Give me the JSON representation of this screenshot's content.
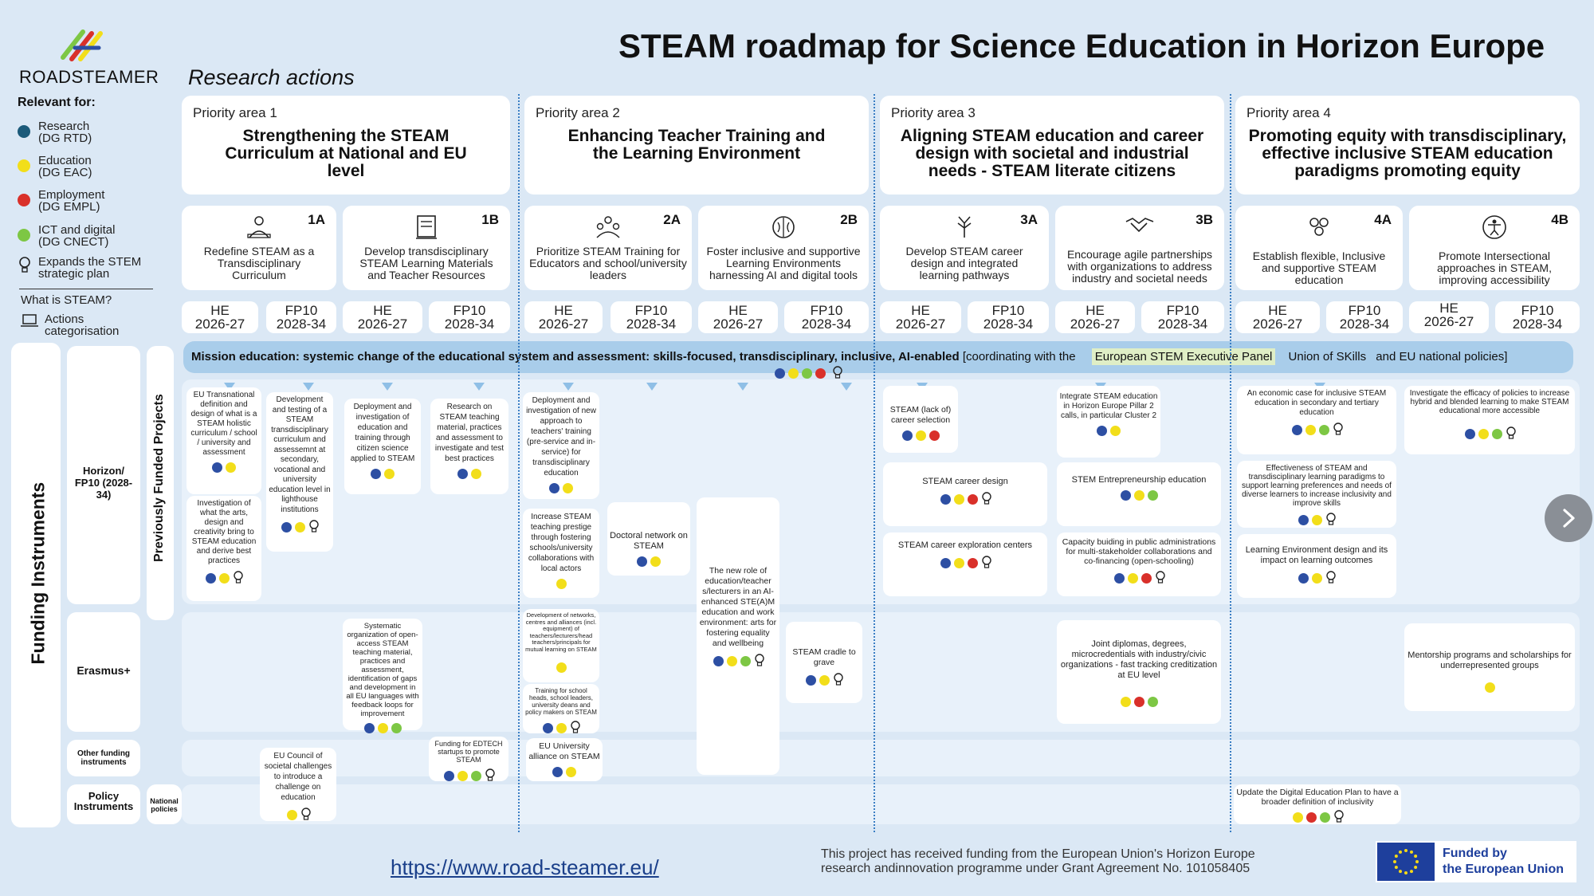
{
  "header": {
    "logo_text": "ROADSTEAMER",
    "title": "STEAM roadmap for Science Education in Horizon Europe",
    "section": "Research actions"
  },
  "legend": {
    "heading": "Relevant for:",
    "items": [
      {
        "label": "Research",
        "sub": "(DG RTD)",
        "color": "#1b5a7a"
      },
      {
        "label": "Education",
        "sub": "(DG EAC)",
        "color": "#f2de1a"
      },
      {
        "label": "Employment",
        "sub": "(DG EMPL)",
        "color": "#d9302a"
      },
      {
        "label": "ICT and digital",
        "sub": "(DG CNECT)",
        "color": "#7dc744"
      }
    ],
    "expands_label": "Expands the STEM",
    "expands_sub": "strategic plan",
    "what_is": "What is STEAM?",
    "actions_label": "Actions",
    "actions_sub": "categorisation"
  },
  "colors": {
    "research": "#2d4fa3",
    "education": "#f2de1a",
    "employment": "#d9302a",
    "ict": "#7dc744"
  },
  "priority_areas": [
    {
      "label": "Priority area 1",
      "title": "Strengthening the STEAM Curriculum at National and EU level"
    },
    {
      "label": "Priority area 2",
      "title": "Enhancing Teacher Training and the Learning Environment"
    },
    {
      "label": "Priority area 3",
      "title": "Aligning STEAM education and career design with societal and industrial needs - STEAM literate citizens"
    },
    {
      "label": "Priority area 4",
      "title": "Promoting equity with transdisciplinary, effective inclusive STEAM education paradigms promoting equity"
    }
  ],
  "sub_areas": [
    {
      "code": "1A",
      "text": "Redefine STEAM as a Transdisciplinary Curriculum",
      "icon": "students-icon"
    },
    {
      "code": "1B",
      "text": "Develop transdisciplinary STEAM Learning Materials and Teacher Resources",
      "icon": "materials-icon"
    },
    {
      "code": "2A",
      "text": "Prioritize STEAM Training for Educators and school/university leaders",
      "icon": "training-icon"
    },
    {
      "code": "2B",
      "text": "Foster inclusive and supportive Learning Environments harnessing AI and digital tools",
      "icon": "brain-icon"
    },
    {
      "code": "3A",
      "text": "Develop STEAM career design and integrated learning pathways",
      "icon": "career-icon"
    },
    {
      "code": "3B",
      "text": "Encourage agile partnerships with organizations to address industry and societal needs",
      "icon": "handshake-icon"
    },
    {
      "code": "4A",
      "text": "Establish flexible, Inclusive and supportive STEAM education",
      "icon": "people-icon"
    },
    {
      "code": "4B",
      "text": "Promote Intersectional approaches in STEAM, improving accessibility",
      "icon": "accessibility-icon"
    }
  ],
  "years": [
    {
      "prog": "HE",
      "range": "2026-27"
    },
    {
      "prog": "FP10",
      "range": "2028-34"
    },
    {
      "prog": "HE",
      "range": "2026-27"
    },
    {
      "prog": "FP10",
      "range": "2028-34"
    },
    {
      "prog": "HE",
      "range": "2026-27"
    },
    {
      "prog": "FP10",
      "range": "2028-34"
    },
    {
      "prog": "HE",
      "range": "2026-27"
    },
    {
      "prog": "FP10",
      "range": "2028-34"
    },
    {
      "prog": "HE",
      "range": "2026-27"
    },
    {
      "prog": "FP10",
      "range": "2028-34"
    },
    {
      "prog": "HE",
      "range": "2026-27"
    },
    {
      "prog": "FP10",
      "range": "2028-34"
    },
    {
      "prog": "HE",
      "range": "2026-27"
    },
    {
      "prog": "FP10",
      "range": "2028-34"
    },
    {
      "prog": "HE",
      "range": "2026-27"
    },
    {
      "prog": "FP10",
      "range": "2028-34"
    }
  ],
  "mission": {
    "bold": "Mission education: systemic change of the educational system and assessment: skills-focused, transdisciplinary, inclusive, AI-enabled",
    "coord": "[coordinating with the",
    "panel": "European STEM Executive Panel",
    "union": "Union of SKills",
    "end": "and EU national policies]"
  },
  "side_labels": {
    "funding": "Funding Instruments",
    "previous": "Previously Funded Projects",
    "horizon": "Horizon/ FP10 (2028-34)",
    "erasmus": "Erasmus+",
    "other": "Other funding instruments",
    "policy": "Policy Instruments",
    "national": "National policies"
  },
  "cells": [
    {
      "text": "EU Transnational definition and design of what is a STEAM holistic curriculum / school / university and assessment",
      "dots": [
        "research",
        "education"
      ],
      "bulb": false
    },
    {
      "text": "Investigation of what the arts, design and creativity bring to STEAM education and derive best practices",
      "dots": [
        "research",
        "education"
      ],
      "bulb": true
    },
    {
      "text": "Development and testing of a STEAM transdisciplinary curriculum and assessemnt at secondary, vocational and university education level in lighthouse institutions",
      "dots": [
        "research",
        "education"
      ],
      "bulb": true
    },
    {
      "text": "Deployment and investigation of education and training through citizen science applied to STEAM",
      "dots": [
        "research",
        "education"
      ],
      "bulb": false
    },
    {
      "text": "Research on STEAM teaching material, practices and assessment to investigate and test best practices",
      "dots": [
        "research",
        "education"
      ],
      "bulb": false
    },
    {
      "text": "Deployment and investigation of new approach to teachers' training (pre-service and in-service) for transdisciplinary education",
      "dots": [
        "research",
        "education"
      ],
      "bulb": false
    },
    {
      "text": "Increase STEAM teaching prestige through fostering schools/university collaborations with local actors",
      "dots": [
        "education"
      ],
      "bulb": false
    },
    {
      "text": "Doctoral network on STEAM",
      "dots": [
        "research",
        "education"
      ],
      "bulb": false
    },
    {
      "text": "The new role of education/teacher s/lecturers in an AI-enhanced STE(A)M education and work environment: arts for fostering equality and wellbeing",
      "dots": [
        "research",
        "education",
        "ict"
      ],
      "bulb": true
    },
    {
      "text": "STEAM cradle to grave",
      "dots": [
        "research",
        "education"
      ],
      "bulb": true
    },
    {
      "text": "STEAM (lack of) career selection",
      "dots": [
        "research",
        "education",
        "employment"
      ],
      "bulb": false
    },
    {
      "text": "STEAM career design",
      "dots": [
        "research",
        "education",
        "employment"
      ],
      "bulb": true
    },
    {
      "text": "STEAM career exploration centers",
      "dots": [
        "research",
        "education",
        "employment"
      ],
      "bulb": true
    },
    {
      "text": "Integrate STEAM education in Horizon Europe Pillar 2 calls, in particular Cluster 2",
      "dots": [
        "research",
        "education"
      ],
      "bulb": false
    },
    {
      "text": "STEM Entrepreneurship education",
      "dots": [
        "research",
        "education",
        "ict"
      ],
      "bulb": false
    },
    {
      "text": "Capacity buiding in public administrations for multi-stakeholder collaborations and co-financing (open-schooling)",
      "dots": [
        "research",
        "education",
        "employment"
      ],
      "bulb": true
    },
    {
      "text": "An economic case for inclusive STEAM education in secondary and tertiary education",
      "dots": [
        "research",
        "education",
        "ict"
      ],
      "bulb": true
    },
    {
      "text": "Effectiveness of STEAM and transdisciplinary learning paradigms to support learning preferences and needs of diverse learners to increase inclusivity and improve skills",
      "dots": [
        "research",
        "education"
      ],
      "bulb": true
    },
    {
      "text": "Learning Environment design and its impact on learning outcomes",
      "dots": [
        "research",
        "education"
      ],
      "bulb": true
    },
    {
      "text": "Investigate the efficacy of policies to increase hybrid and blended learning to make STEAM educational more accessible",
      "dots": [
        "research",
        "education",
        "ict"
      ],
      "bulb": true
    },
    {
      "text": "Systematic organization of open-access STEAM teaching material, practices and assessment, identification of gaps and development in all EU languages with feedback loops for improvement",
      "dots": [
        "research",
        "education",
        "ict"
      ],
      "bulb": false
    },
    {
      "text": "Development of networks, centres and alliances (incl. equipment) of teachers/lecturers/head teachers/principals for mutual learning on STEAM",
      "dots": [
        "education"
      ],
      "bulb": false
    },
    {
      "text": "Training for school heads, school leaders, university deans and policy makers on STEAM",
      "dots": [
        "research",
        "education"
      ],
      "bulb": true
    },
    {
      "text": "Joint diplomas, degrees, microcredentials with industry/civic organizations - fast tracking creditization at EU level",
      "dots": [
        "education",
        "employment",
        "ict"
      ],
      "bulb": false
    },
    {
      "text": "Mentorship programs and scholarships for underrepresented groups",
      "dots": [
        "education"
      ],
      "bulb": false
    },
    {
      "text": "EU Council of societal challenges to introduce a challenge on education",
      "dots": [
        "education"
      ],
      "bulb": true
    },
    {
      "text": "Funding for EDTECH startups to promote STEAM",
      "dots": [
        "research",
        "education",
        "ict"
      ],
      "bulb": true
    },
    {
      "text": "EU University alliance on STEAM",
      "dots": [
        "research",
        "education"
      ],
      "bulb": false
    },
    {
      "text": "Update the Digital Education Plan to have a broader definition of inclusivity",
      "dots": [
        "education",
        "employment",
        "ict"
      ],
      "bulb": true
    }
  ],
  "mission_dots": [
    "research",
    "education",
    "ict",
    "employment"
  ],
  "footer": {
    "link": "https://www.road-steamer.eu/",
    "note1": "This project has received funding from the European Union's Horizon Europe",
    "note2": "research andinnovation programme under Grant Agreement No. 101058405",
    "eu1": "Funded by",
    "eu2": "the European Union"
  }
}
